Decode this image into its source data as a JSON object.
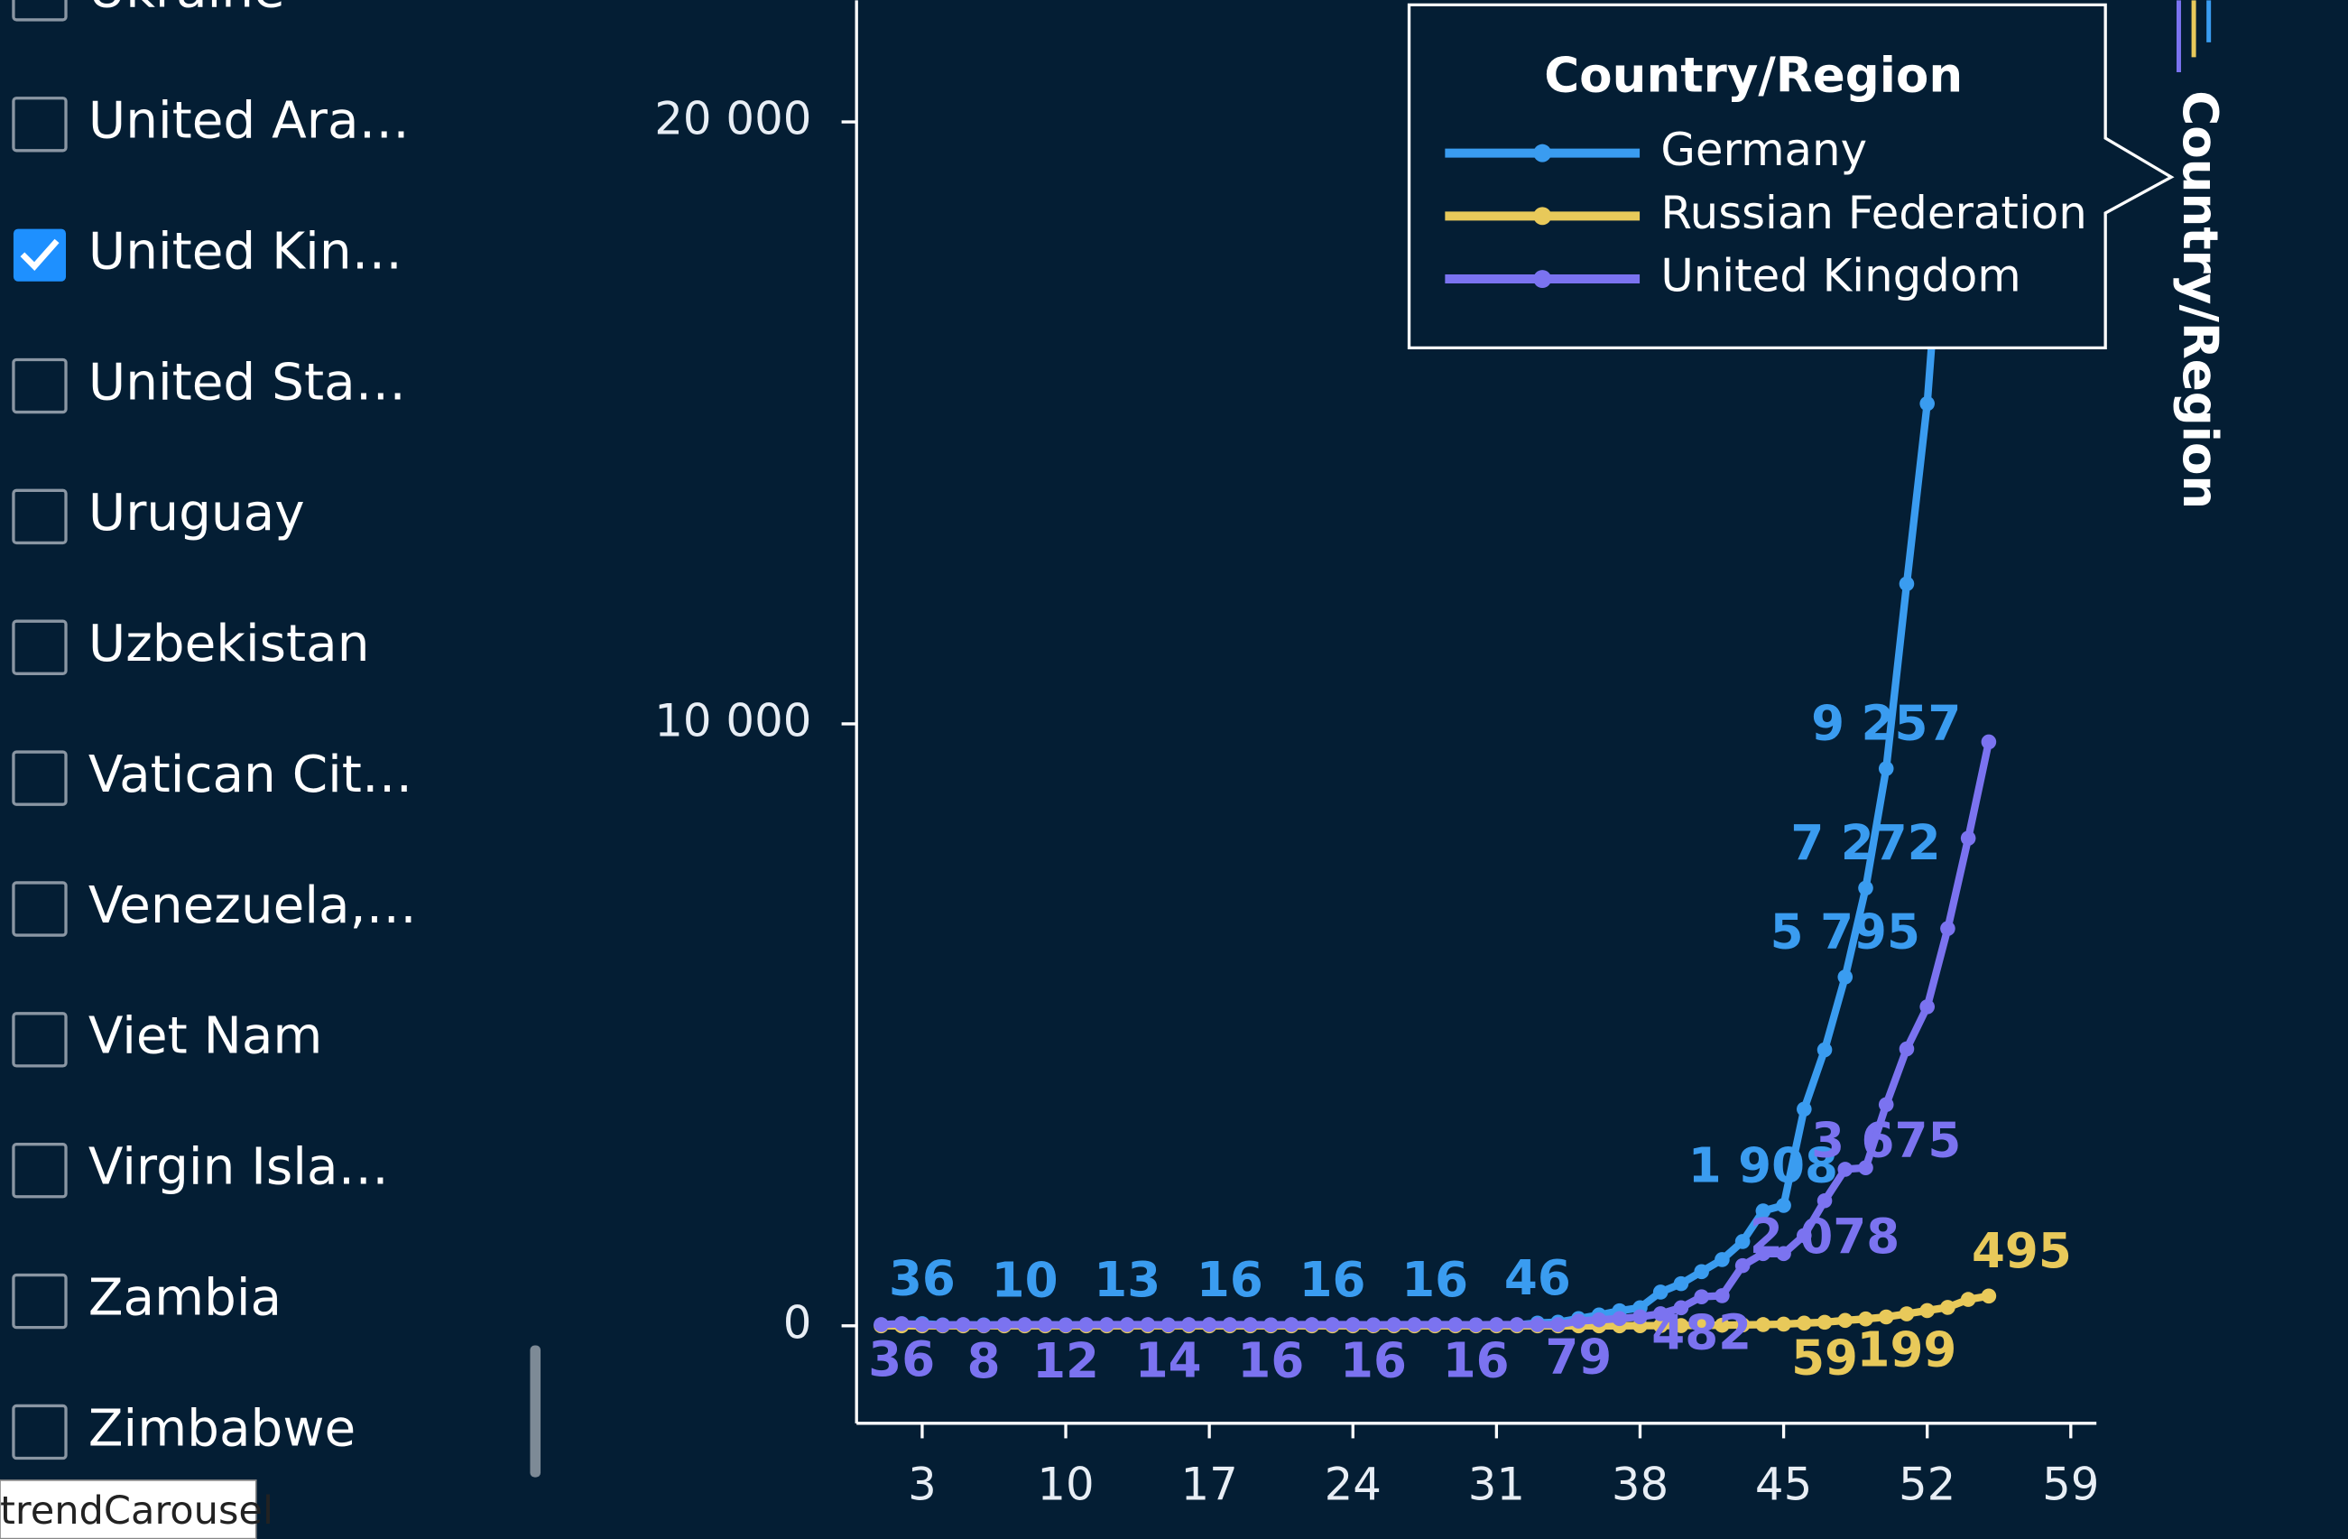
{
  "sidebar": {
    "items": [
      {
        "label": "Ukraine",
        "checked": false
      },
      {
        "label": "United Ara…",
        "checked": false
      },
      {
        "label": "United Kin…",
        "checked": true
      },
      {
        "label": "United Sta…",
        "checked": false
      },
      {
        "label": "Uruguay",
        "checked": false
      },
      {
        "label": "Uzbekistan",
        "checked": false
      },
      {
        "label": "Vatican Cit…",
        "checked": false
      },
      {
        "label": "Venezuela,…",
        "checked": false
      },
      {
        "label": "Viet Nam",
        "checked": false
      },
      {
        "label": "Virgin Isla…",
        "checked": false
      },
      {
        "label": "Zambia",
        "checked": false
      },
      {
        "label": "Zimbabwe",
        "checked": false
      }
    ]
  },
  "tooltip": "trendCarousel",
  "side_label": "Country/Region",
  "chart_data": {
    "type": "line",
    "legend_title": "Country/Region",
    "x": [
      1,
      2,
      3,
      4,
      5,
      6,
      7,
      8,
      9,
      10,
      11,
      12,
      13,
      14,
      15,
      16,
      17,
      18,
      19,
      20,
      21,
      22,
      23,
      24,
      25,
      26,
      27,
      28,
      29,
      30,
      31,
      32,
      33,
      34,
      35,
      36,
      37,
      38,
      39,
      40,
      41,
      42,
      43,
      44,
      45,
      46,
      47,
      48,
      49,
      50,
      51,
      52,
      53,
      54,
      55
    ],
    "xlim": [
      -0.2,
      60.25
    ],
    "xticks": [
      3,
      10,
      17,
      24,
      31,
      38,
      45,
      52,
      59
    ],
    "ylim": [
      -1620,
      22020
    ],
    "yticks": [
      0,
      {
        "value": 10000,
        "label": "10 000"
      },
      {
        "value": 20000,
        "label": "20 000"
      }
    ],
    "series": [
      {
        "name": "Germany",
        "color": "#3a9cf0",
        "values": [
          16,
          16,
          36,
          16,
          16,
          16,
          16,
          10,
          16,
          16,
          16,
          16,
          13,
          16,
          16,
          16,
          16,
          16,
          16,
          16,
          16,
          16,
          16,
          16,
          16,
          16,
          16,
          16,
          16,
          16,
          16,
          16,
          46,
          60,
          120,
          180,
          250,
          300,
          560,
          700,
          900,
          1100,
          1400,
          1908,
          2000,
          3600,
          4585,
          5795,
          7272,
          9257,
          12327,
          15320,
          19848,
          null,
          null
        ],
        "value_labels": [
          null,
          null,
          "36",
          null,
          null,
          null,
          null,
          "10",
          null,
          null,
          null,
          null,
          "13",
          null,
          null,
          null,
          null,
          "16",
          null,
          null,
          null,
          null,
          "16",
          null,
          null,
          null,
          null,
          "16",
          null,
          null,
          null,
          null,
          "46",
          null,
          null,
          null,
          null,
          null,
          null,
          null,
          null,
          null,
          null,
          "1 908",
          null,
          null,
          null,
          "5 795",
          "7 272",
          "9 257",
          null,
          null,
          null,
          null,
          null
        ]
      },
      {
        "name": "Russian Federation",
        "color": "#e8c95a",
        "values": [
          0,
          0,
          0,
          0,
          0,
          0,
          0,
          0,
          0,
          0,
          0,
          0,
          0,
          0,
          0,
          0,
          0,
          0,
          0,
          0,
          0,
          0,
          0,
          0,
          0,
          0,
          0,
          0,
          0,
          0,
          0,
          0,
          0,
          0,
          0,
          0,
          0,
          2,
          3,
          4,
          7,
          10,
          15,
          20,
          28,
          45,
          59,
          90,
          114,
          147,
          199,
          253,
          306,
          438,
          495
        ],
        "value_labels": [
          null,
          null,
          null,
          null,
          null,
          null,
          null,
          null,
          null,
          null,
          null,
          null,
          null,
          null,
          null,
          null,
          null,
          null,
          null,
          null,
          null,
          null,
          null,
          null,
          null,
          null,
          null,
          null,
          null,
          null,
          null,
          null,
          null,
          null,
          null,
          null,
          null,
          null,
          null,
          null,
          null,
          null,
          null,
          null,
          null,
          null,
          "59",
          null,
          null,
          null,
          "199",
          null,
          null,
          null,
          "495"
        ]
      },
      {
        "name": "United Kingdom",
        "color": "#7b73f0",
        "values": [
          20,
          36,
          20,
          10,
          20,
          8,
          20,
          20,
          20,
          12,
          20,
          20,
          20,
          20,
          14,
          20,
          20,
          20,
          20,
          16,
          20,
          20,
          20,
          20,
          16,
          20,
          20,
          20,
          20,
          16,
          20,
          20,
          20,
          20,
          79,
          100,
          120,
          150,
          200,
          300,
          482,
          500,
          1000,
          1200,
          1200,
          1500,
          2078,
          2600,
          2626,
          3675,
          4600,
          5300,
          6600,
          8100,
          9700
        ],
        "value_labels": [
          null,
          "36",
          null,
          null,
          null,
          "8",
          null,
          null,
          null,
          "12",
          null,
          null,
          null,
          null,
          "14",
          null,
          null,
          null,
          null,
          "16",
          null,
          null,
          null,
          null,
          "16",
          null,
          null,
          null,
          null,
          "16",
          null,
          null,
          null,
          null,
          "79",
          null,
          null,
          null,
          null,
          null,
          "482",
          null,
          null,
          null,
          null,
          null,
          "2 078",
          null,
          null,
          "3 675",
          null,
          null,
          null,
          null,
          null
        ]
      }
    ]
  }
}
